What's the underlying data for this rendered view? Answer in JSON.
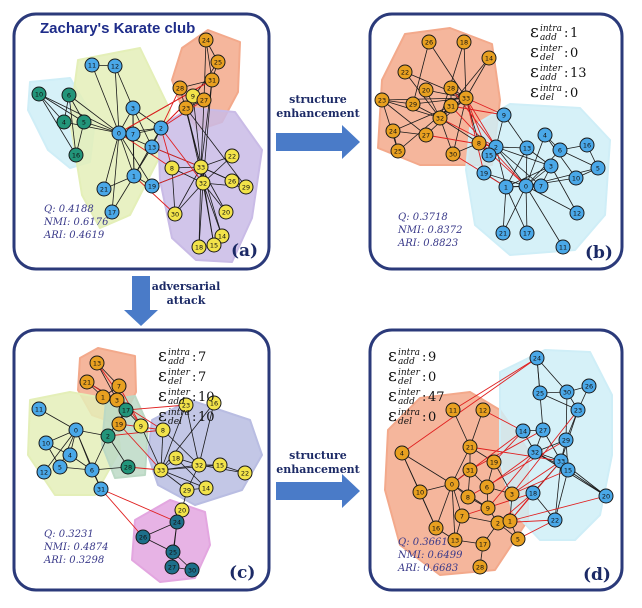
{
  "title": "Zachary's Karate club",
  "colors": {
    "frame": "#2b3a7a",
    "arrow": "#4a7bc8",
    "node_blue": "#4aa8e8",
    "node_orange": "#e8a020",
    "node_yellow": "#f2e34a",
    "node_green": "#22957a",
    "node_teal": "#1d6f8a",
    "edge_black": "#1a1a1a",
    "edge_red": "#e02020"
  },
  "arrows": [
    {
      "id": "a-b",
      "label_lines": [
        "structure",
        "enhancement"
      ]
    },
    {
      "id": "a-c",
      "label_lines": [
        "adversarial",
        "attack"
      ]
    },
    {
      "id": "c-d",
      "label_lines": [
        "structure",
        "enhancement"
      ]
    }
  ],
  "panels": [
    {
      "id": "a",
      "label": "(a)",
      "stats": [
        "Q: 0.4188",
        "NMI: 0.6176",
        "ARI: 0.4619"
      ],
      "perturb": [],
      "nodes": [
        {
          "id": "1",
          "c": "blue"
        },
        {
          "id": "2",
          "c": "blue"
        },
        {
          "id": "3",
          "c": "blue"
        },
        {
          "id": "4",
          "c": "blue"
        },
        {
          "id": "5",
          "c": "green"
        },
        {
          "id": "6",
          "c": "green"
        },
        {
          "id": "7",
          "c": "green"
        },
        {
          "id": "8",
          "c": "blue"
        },
        {
          "id": "9",
          "c": "yellow"
        },
        {
          "id": "10",
          "c": "blue"
        },
        {
          "id": "11",
          "c": "blue"
        },
        {
          "id": "12",
          "c": "blue"
        },
        {
          "id": "13",
          "c": "blue"
        },
        {
          "id": "14",
          "c": "yellow"
        },
        {
          "id": "15",
          "c": "yellow"
        },
        {
          "id": "16",
          "c": "yellow"
        },
        {
          "id": "17",
          "c": "blue"
        },
        {
          "id": "18",
          "c": "green"
        },
        {
          "id": "19",
          "c": "blue"
        },
        {
          "id": "20",
          "c": "yellow"
        },
        {
          "id": "21",
          "c": "blue"
        },
        {
          "id": "22",
          "c": "yellow"
        },
        {
          "id": "23",
          "c": "yellow"
        },
        {
          "id": "24",
          "c": "orange"
        },
        {
          "id": "25",
          "c": "orange"
        },
        {
          "id": "26",
          "c": "orange"
        },
        {
          "id": "27",
          "c": "orange"
        },
        {
          "id": "28",
          "c": "orange"
        },
        {
          "id": "29",
          "c": "yellow"
        },
        {
          "id": "30",
          "c": "yellow"
        },
        {
          "id": "31",
          "c": "yellow"
        },
        {
          "id": "32",
          "c": "yellow"
        },
        {
          "id": "33",
          "c": "yellow"
        },
        {
          "id": "0",
          "c": "blue"
        }
      ]
    },
    {
      "id": "b",
      "label": "(b)",
      "stats": [
        "Q: 0.3718",
        "NMI: 0.8372",
        "ARI: 0.8823"
      ],
      "perturb": [
        {
          "kind": "intra",
          "op": "add",
          "value": "1"
        },
        {
          "kind": "inter",
          "op": "del",
          "value": "0"
        },
        {
          "kind": "inter",
          "op": "add",
          "value": "13"
        },
        {
          "kind": "intra",
          "op": "del",
          "value": "0"
        }
      ],
      "nodes": []
    },
    {
      "id": "c",
      "label": "(c)",
      "stats": [
        "Q: 0.3231",
        "NMI: 0.4874",
        "ARI: 0.3298"
      ],
      "perturb": [
        {
          "kind": "intra",
          "op": "add",
          "value": "7"
        },
        {
          "kind": "inter",
          "op": "del",
          "value": "7"
        },
        {
          "kind": "inter",
          "op": "add",
          "value": "10"
        },
        {
          "kind": "intra",
          "op": "del",
          "value": "10"
        }
      ],
      "nodes": []
    },
    {
      "id": "d",
      "label": "(d)",
      "stats": [
        "Q: 0.3661",
        "NMI: 0.6499",
        "ARI: 0.6683"
      ],
      "perturb": [
        {
          "kind": "intra",
          "op": "add",
          "value": "9"
        },
        {
          "kind": "inter",
          "op": "del",
          "value": "0"
        },
        {
          "kind": "inter",
          "op": "add",
          "value": "47"
        },
        {
          "kind": "intra",
          "op": "del",
          "value": "0"
        }
      ],
      "nodes": []
    }
  ]
}
